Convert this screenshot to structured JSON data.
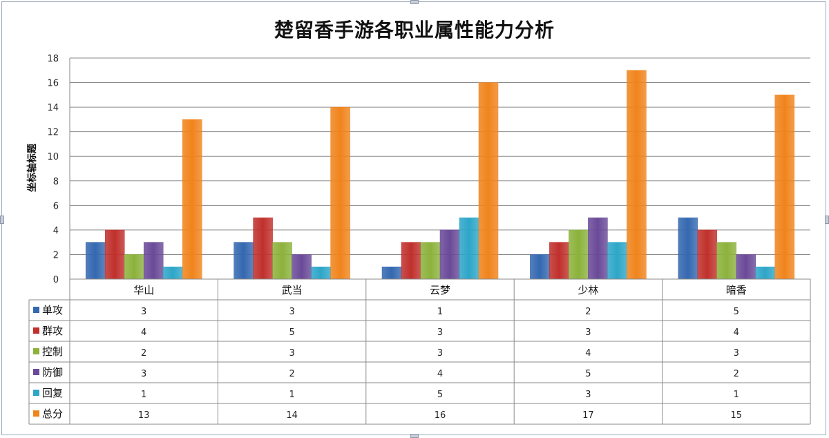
{
  "chart_data": {
    "type": "bar",
    "title": "楚留香手游各职业属性能力分析",
    "xlabel": "",
    "ylabel": "坐标轴标题",
    "categories": [
      "华山",
      "武当",
      "云梦",
      "少林",
      "暗香"
    ],
    "ylim": [
      0,
      18
    ],
    "yticks": [
      0,
      2,
      4,
      6,
      8,
      10,
      12,
      14,
      16,
      18
    ],
    "grid": true,
    "legend": "data-table",
    "series": [
      {
        "name": "单攻",
        "color": "#3468b0",
        "values": [
          3,
          3,
          1,
          2,
          5
        ]
      },
      {
        "name": "群攻",
        "color": "#c0302c",
        "values": [
          4,
          5,
          3,
          3,
          4
        ]
      },
      {
        "name": "控制",
        "color": "#8cb23c",
        "values": [
          2,
          3,
          3,
          4,
          3
        ]
      },
      {
        "name": "防御",
        "color": "#6a4a98",
        "values": [
          3,
          2,
          4,
          5,
          2
        ]
      },
      {
        "name": "回复",
        "color": "#2ea6c8",
        "values": [
          1,
          1,
          5,
          3,
          1
        ]
      },
      {
        "name": "总分",
        "color": "#f0841c",
        "values": [
          13,
          14,
          16,
          17,
          15
        ]
      }
    ]
  }
}
